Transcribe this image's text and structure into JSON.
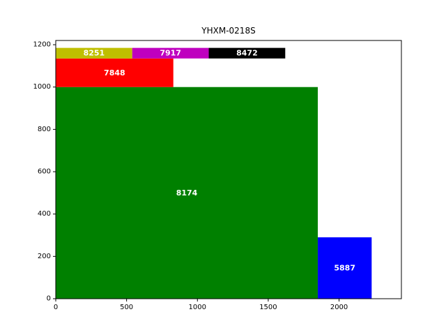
{
  "chart_data": {
    "type": "rectangle-packing",
    "title": "YHXM-0218S",
    "xlabel": "",
    "ylabel": "",
    "xlim": [
      0,
      2440
    ],
    "ylim": [
      0,
      1220
    ],
    "x_ticks": [
      0,
      500,
      1000,
      1500,
      2000
    ],
    "y_ticks": [
      0,
      200,
      400,
      600,
      800,
      1000,
      1200
    ],
    "grid": false,
    "rectangles": [
      {
        "label": "8174",
        "x": 0,
        "y": 0,
        "width": 1850,
        "height": 1000,
        "color": "#008000"
      },
      {
        "label": "5887",
        "x": 1850,
        "y": 0,
        "width": 380,
        "height": 290,
        "color": "#0000ff"
      },
      {
        "label": "7848",
        "x": 0,
        "y": 1000,
        "width": 830,
        "height": 135,
        "color": "#ff0000"
      },
      {
        "label": "8251",
        "x": 0,
        "y": 1135,
        "width": 540,
        "height": 50,
        "color": "#bfbf00"
      },
      {
        "label": "7917",
        "x": 540,
        "y": 1135,
        "width": 540,
        "height": 50,
        "color": "#bf00bf"
      },
      {
        "label": "8472",
        "x": 1080,
        "y": 1135,
        "width": 540,
        "height": 50,
        "color": "#000000"
      }
    ]
  }
}
